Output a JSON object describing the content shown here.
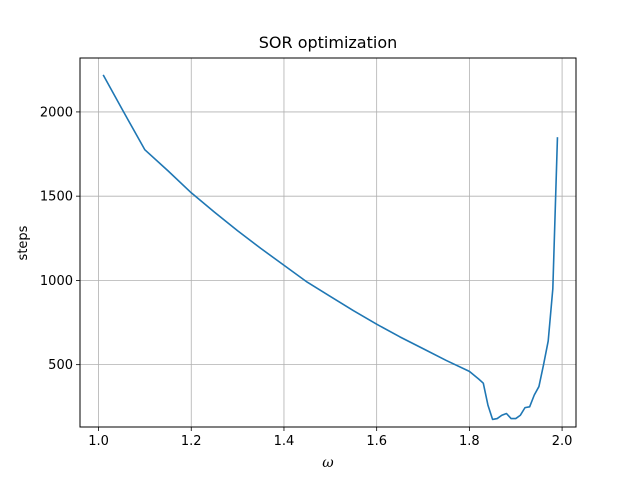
{
  "chart_data": {
    "type": "line",
    "title": "SOR optimization",
    "xlabel": "ω",
    "ylabel": "steps",
    "xlim": [
      0.96,
      2.03
    ],
    "ylim": [
      130,
      2320
    ],
    "x_ticks": [
      1.0,
      1.2,
      1.4,
      1.6,
      1.8,
      2.0
    ],
    "x_tick_labels": [
      "1.0",
      "1.2",
      "1.4",
      "1.6",
      "1.8",
      "2.0"
    ],
    "y_ticks": [
      500,
      1000,
      1500,
      2000
    ],
    "y_tick_labels": [
      "500",
      "1000",
      "1500",
      "2000"
    ],
    "grid": true,
    "series": [
      {
        "color": "#1f77b4",
        "x": [
          1.01,
          1.05,
          1.1,
          1.15,
          1.2,
          1.25,
          1.3,
          1.35,
          1.4,
          1.45,
          1.5,
          1.55,
          1.6,
          1.65,
          1.7,
          1.75,
          1.8,
          1.82,
          1.83,
          1.84,
          1.85,
          1.86,
          1.87,
          1.88,
          1.89,
          1.9,
          1.91,
          1.92,
          1.93,
          1.94,
          1.95,
          1.96,
          1.97,
          1.98,
          1.99
        ],
        "y": [
          2220,
          2020,
          1775,
          1650,
          1520,
          1405,
          1295,
          1190,
          1090,
          990,
          905,
          820,
          740,
          665,
          595,
          525,
          460,
          415,
          390,
          260,
          175,
          180,
          200,
          210,
          180,
          180,
          200,
          245,
          250,
          320,
          370,
          500,
          640,
          950,
          1850
        ]
      }
    ]
  }
}
